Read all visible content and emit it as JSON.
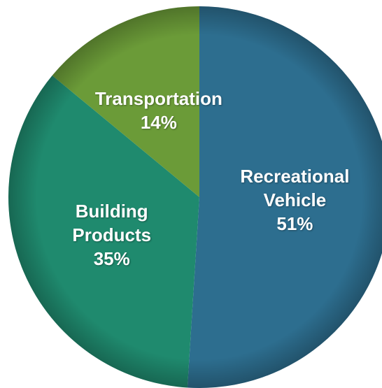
{
  "chart_data": {
    "type": "pie",
    "categories": [
      "Recreational Vehicle",
      "Building Products",
      "Transportation"
    ],
    "values": [
      51,
      35,
      14
    ],
    "value_labels": [
      "51%",
      "35%",
      "14%"
    ],
    "colors": [
      "#2d6e8f",
      "#1f8a6e",
      "#6b9b38"
    ]
  }
}
